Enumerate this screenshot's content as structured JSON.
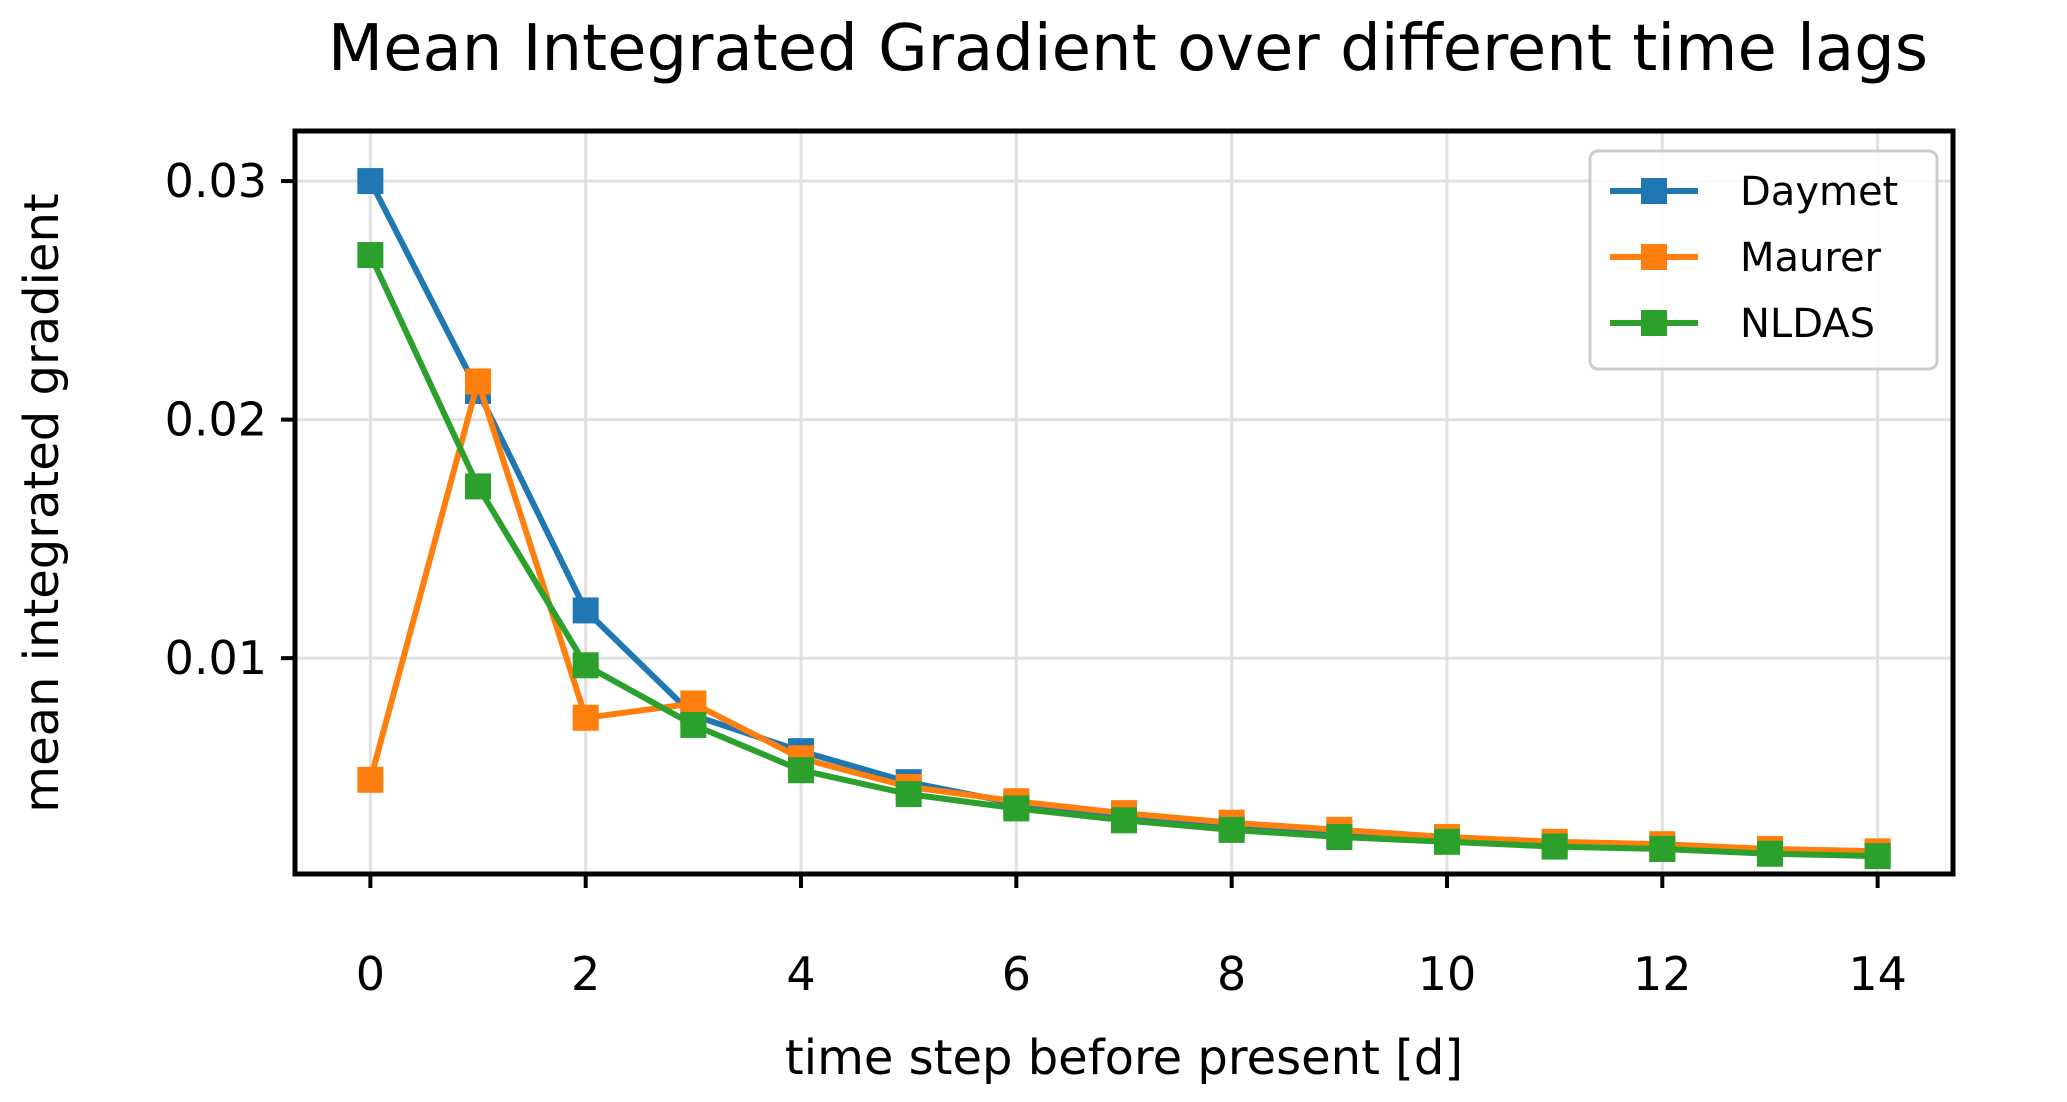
{
  "chart_data": {
    "type": "line",
    "title": "Mean Integrated Gradient over different time lags",
    "xlabel": "time step before present [d]",
    "ylabel": "mean integrated gradient",
    "x": [
      0,
      1,
      2,
      3,
      4,
      5,
      6,
      7,
      8,
      9,
      10,
      11,
      12,
      13,
      14
    ],
    "xlim": [
      -0.7,
      14.7
    ],
    "ylim": [
      0.00095,
      0.0321
    ],
    "xticks": [
      0,
      2,
      4,
      6,
      8,
      10,
      12,
      14
    ],
    "xtick_labels": [
      "0",
      "2",
      "4",
      "6",
      "8",
      "10",
      "12",
      "14"
    ],
    "yticks": [
      0.01,
      0.02,
      0.03
    ],
    "ytick_labels": [
      "0.01",
      "0.02",
      "0.03"
    ],
    "grid": true,
    "legend_position": "top-right",
    "marker": "square",
    "series": [
      {
        "name": "Daymet",
        "color": "#1f77b4",
        "values": [
          0.03,
          0.0212,
          0.012,
          0.0076,
          0.0061,
          0.0048,
          0.0039,
          0.0033,
          0.0029,
          0.0026,
          0.0024,
          0.0022,
          0.002,
          0.0019,
          0.0018
        ]
      },
      {
        "name": "Maurer",
        "color": "#ff7f0e",
        "values": [
          0.0049,
          0.0216,
          0.0075,
          0.0081,
          0.0058,
          0.0046,
          0.004,
          0.0035,
          0.0031,
          0.0028,
          0.0025,
          0.0023,
          0.0022,
          0.002,
          0.0019
        ]
      },
      {
        "name": "NLDAS",
        "color": "#2ca02c",
        "values": [
          0.0269,
          0.0172,
          0.0097,
          0.0072,
          0.0053,
          0.0043,
          0.0037,
          0.0032,
          0.0028,
          0.0025,
          0.0023,
          0.0021,
          0.002,
          0.0018,
          0.0017
        ]
      }
    ]
  }
}
